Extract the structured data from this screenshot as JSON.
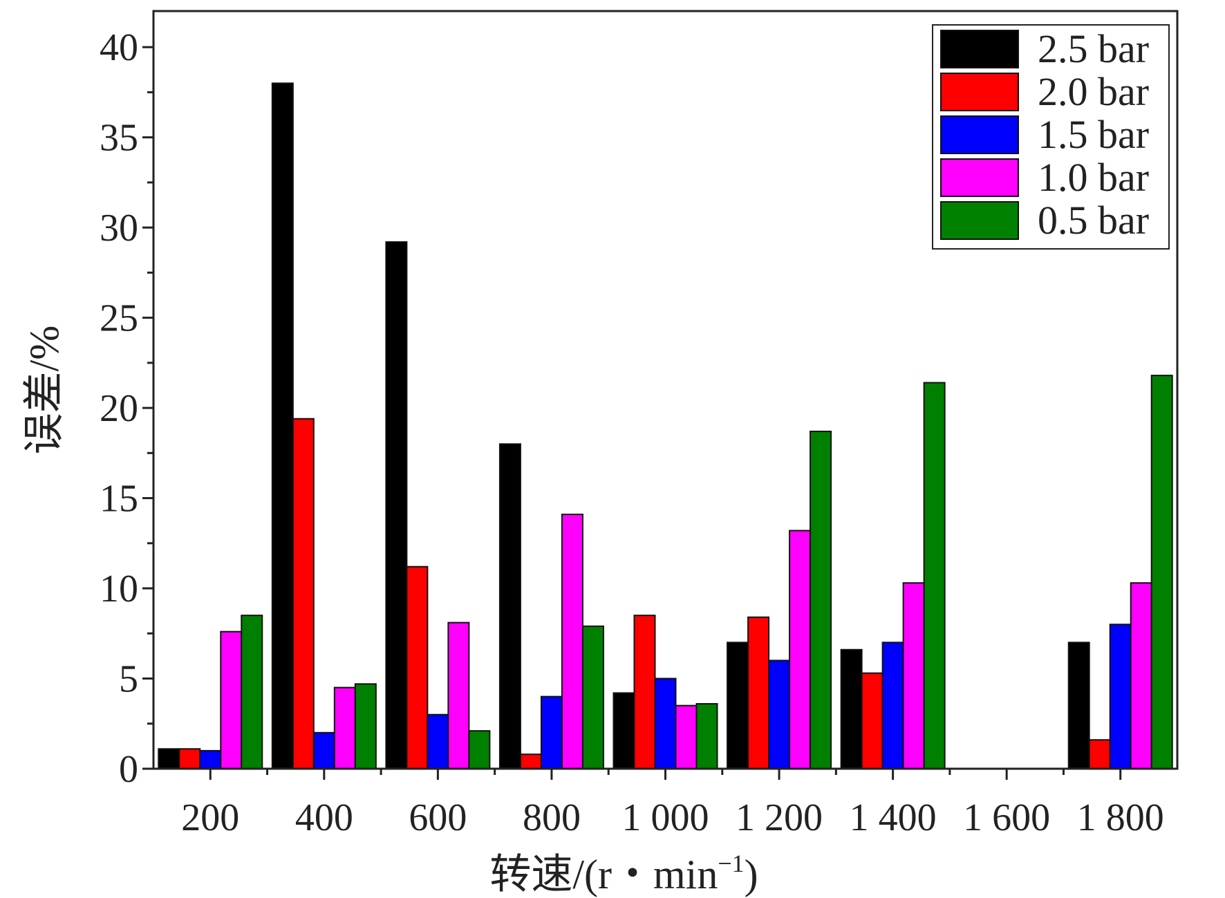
{
  "chart_data": {
    "type": "bar",
    "title": "",
    "xlabel": "转速/(r・min",
    "xlabel_sup": "−1",
    "xlabel_close": ")",
    "ylabel": "误差/%",
    "categories": [
      "200",
      "400",
      "600",
      "800",
      "1 000",
      "1 200",
      "1 400",
      "1 600",
      "1 800"
    ],
    "ylim": [
      0,
      42
    ],
    "yticks": [
      "0",
      "5",
      "10",
      "15",
      "20",
      "25",
      "30",
      "35",
      "40"
    ],
    "legend_position": "top-right",
    "series": [
      {
        "name": "2.5 bar",
        "color": "#000000",
        "values": [
          1.1,
          38.0,
          29.2,
          18.0,
          4.2,
          7.0,
          6.6,
          0,
          7.0
        ]
      },
      {
        "name": "2.0 bar",
        "color": "#ff0000",
        "values": [
          1.1,
          19.4,
          11.2,
          0.8,
          8.5,
          8.4,
          5.3,
          0,
          1.6
        ]
      },
      {
        "name": "1.5 bar",
        "color": "#0000ff",
        "values": [
          1.0,
          2.0,
          3.0,
          4.0,
          5.0,
          6.0,
          7.0,
          0,
          8.0
        ]
      },
      {
        "name": "1.0 bar",
        "color": "#ff00ff",
        "values": [
          7.6,
          4.5,
          8.1,
          14.1,
          3.5,
          13.2,
          10.3,
          0,
          10.3
        ]
      },
      {
        "name": "0.5 bar",
        "color": "#008000",
        "values": [
          8.5,
          4.7,
          2.1,
          7.9,
          3.6,
          18.7,
          21.4,
          0,
          21.8
        ]
      }
    ]
  }
}
